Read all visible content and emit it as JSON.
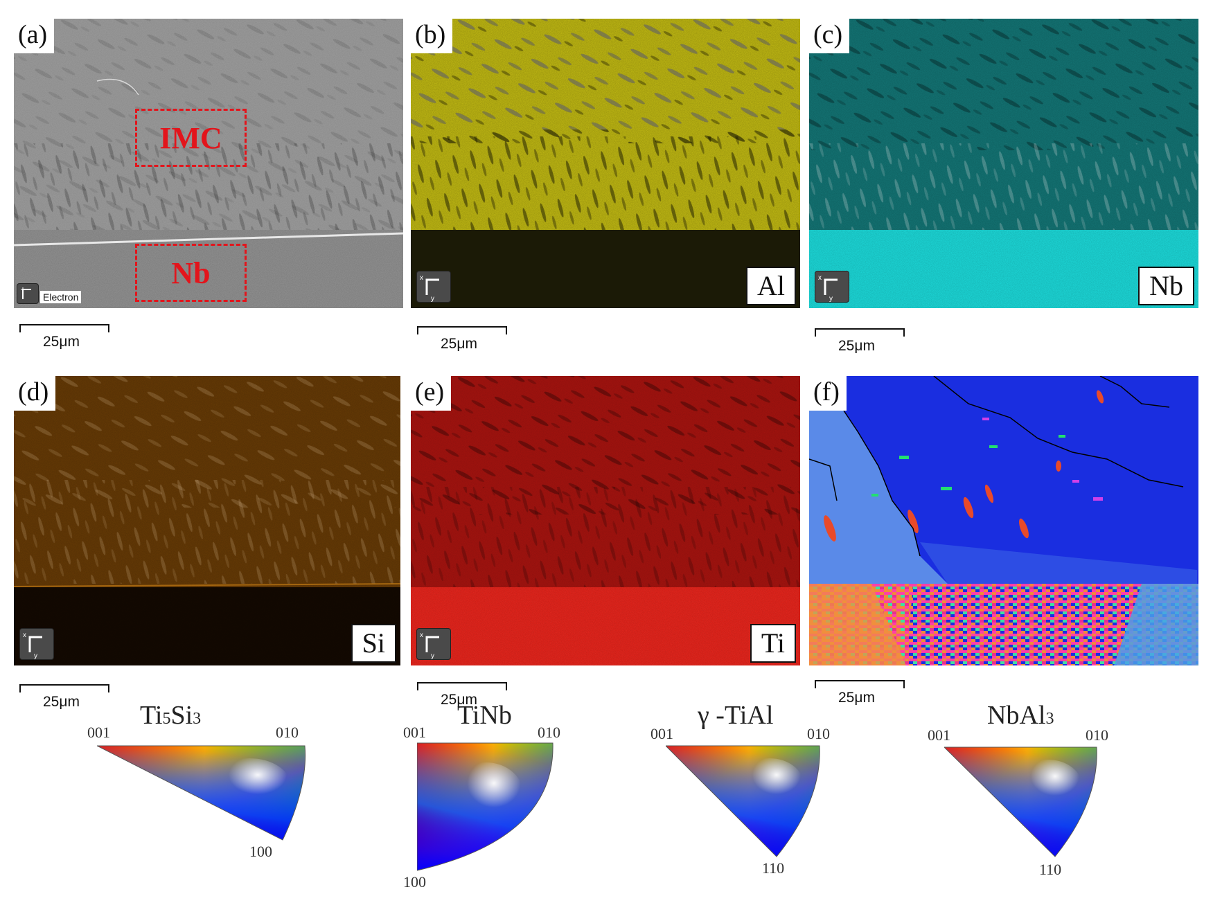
{
  "panels": {
    "a": {
      "label": "(a)",
      "badge": "Electron",
      "scale": "25μm",
      "roi_top": "IMC",
      "roi_bottom": "Nb"
    },
    "b": {
      "label": "(b)",
      "element": "Al",
      "scale": "25μm",
      "color": "#c8c014"
    },
    "c": {
      "label": "(c)",
      "element": "Nb",
      "scale": "25μm",
      "color": "#19b4b4"
    },
    "d": {
      "label": "(d)",
      "element": "Si",
      "scale": "25μm",
      "color": "#b56a08"
    },
    "e": {
      "label": "(e)",
      "element": "Ti",
      "scale": "25μm",
      "color": "#e21a12"
    },
    "f": {
      "label": "(f)",
      "scale": "25μm"
    }
  },
  "legends": [
    {
      "title_main": "Ti",
      "title_sub1": "5",
      "title_mid": "Si",
      "title_sub2": "3",
      "c001": "001",
      "c010": "010",
      "c3": "100"
    },
    {
      "title_main": "TiNb",
      "c001": "001",
      "c010": "010",
      "c3": "100"
    },
    {
      "title_main": "γ -TiAl",
      "c001": "001",
      "c010": "010",
      "c3": "110"
    },
    {
      "title_main": "NbAl",
      "title_sub1": "3",
      "c001": "001",
      "c010": "010",
      "c3": "110"
    }
  ]
}
